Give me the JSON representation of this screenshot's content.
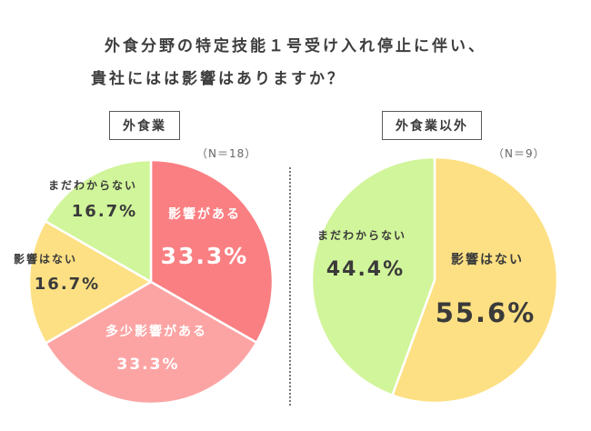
{
  "title": {
    "line1": "外食分野の特定技能１号受け入れ停止に伴い、",
    "line2": "貴社にはは影響はありますか？"
  },
  "colors": {
    "affected": "#fa7f82",
    "somewhat_affected": "#fca4a4",
    "not_affected": "#fde083",
    "unknown": "#d1f59a",
    "slice_stroke": "#ffffff",
    "text_dark": "#3a3a3a",
    "text_light": "#ffffff"
  },
  "chart_data": [
    {
      "type": "pie",
      "title": "外食業",
      "n_label": "（N＝18）",
      "slices": [
        {
          "label": "影響がある",
          "value": 33.3,
          "value_label": "33.3%",
          "color": "#fa7f82",
          "text_color": "#ffffff"
        },
        {
          "label": "多少影響がある",
          "value": 33.3,
          "value_label": "33.3%",
          "color": "#fca4a4",
          "text_color": "#ffffff"
        },
        {
          "label": "影響はない",
          "value": 16.7,
          "value_label": "16.7%",
          "color": "#fde083",
          "text_color": "#3a3a3a"
        },
        {
          "label": "まだわからない",
          "value": 16.7,
          "value_label": "16.7%",
          "color": "#d1f59a",
          "text_color": "#3a3a3a"
        }
      ]
    },
    {
      "type": "pie",
      "title": "外食業以外",
      "n_label": "（N＝9）",
      "slices": [
        {
          "label": "影響はない",
          "value": 55.6,
          "value_label": "55.6%",
          "color": "#fde083",
          "text_color": "#3a3a3a"
        },
        {
          "label": "まだわからない",
          "value": 44.4,
          "value_label": "44.4%",
          "color": "#d1f59a",
          "text_color": "#3a3a3a"
        }
      ]
    }
  ]
}
